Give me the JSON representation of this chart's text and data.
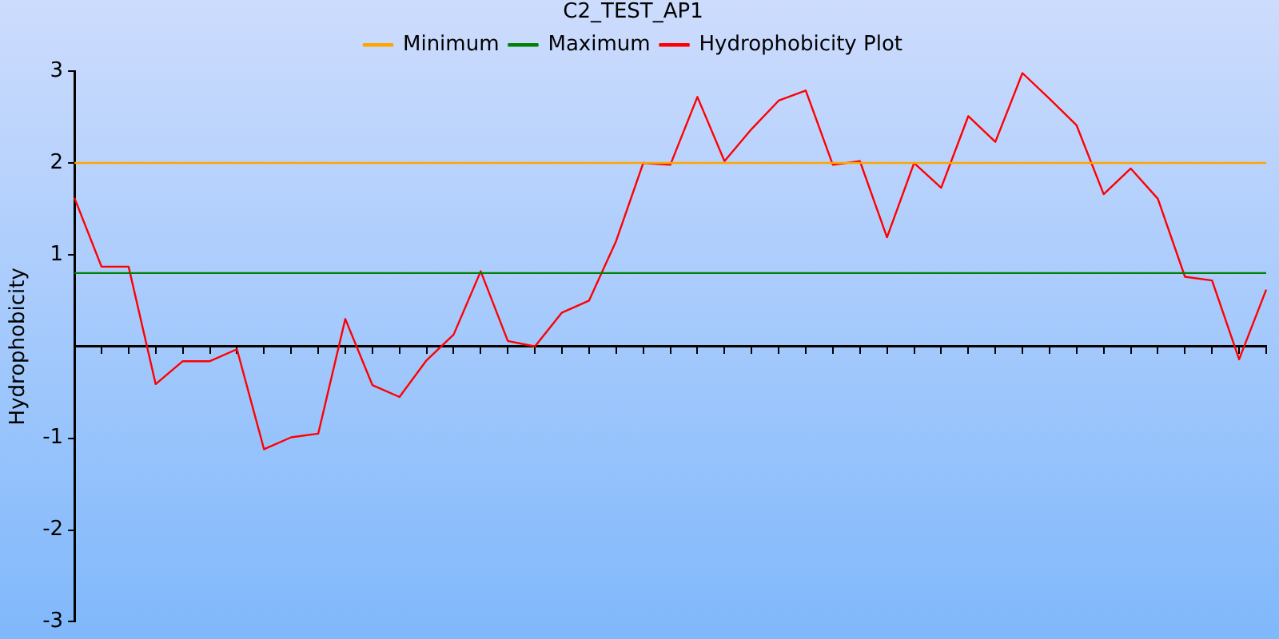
{
  "chart_data": {
    "type": "line",
    "title": "C2_TEST_AP1",
    "ylabel": "Hydrophobicity",
    "categories": [
      null,
      null,
      null,
      null,
      null,
      null,
      null,
      null,
      null,
      null,
      null,
      null,
      null,
      null,
      null,
      null,
      null,
      null,
      null,
      null,
      null,
      null,
      null,
      null,
      null,
      null,
      null,
      null,
      null,
      null,
      null,
      null,
      null,
      null,
      null,
      null,
      null,
      null,
      null,
      null,
      null,
      null,
      null,
      null,
      null
    ],
    "series": [
      {
        "name": "Minimum",
        "color": "#ffa500",
        "values": [
          2,
          2,
          2,
          2,
          2,
          2,
          2,
          2,
          2,
          2,
          2,
          2,
          2,
          2,
          2,
          2,
          2,
          2,
          2,
          2,
          2,
          2,
          2,
          2,
          2,
          2,
          2,
          2,
          2,
          2,
          2,
          2,
          2,
          2,
          2,
          2,
          2,
          2,
          2,
          2,
          2,
          2,
          2,
          2,
          2
        ]
      },
      {
        "name": "Maximum",
        "color": "#008000",
        "values": [
          0.8,
          0.8,
          0.8,
          0.8,
          0.8,
          0.8,
          0.8,
          0.8,
          0.8,
          0.8,
          0.8,
          0.8,
          0.8,
          0.8,
          0.8,
          0.8,
          0.8,
          0.8,
          0.8,
          0.8,
          0.8,
          0.8,
          0.8,
          0.8,
          0.8,
          0.8,
          0.8,
          0.8,
          0.8,
          0.8,
          0.8,
          0.8,
          0.8,
          0.8,
          0.8,
          0.8,
          0.8,
          0.8,
          0.8,
          0.8,
          0.8,
          0.8,
          0.8,
          0.8,
          0.8
        ]
      },
      {
        "name": "Hydrophobicity Plot",
        "color": "#ff0000",
        "values": [
          1.62,
          0.87,
          0.87,
          -0.41,
          -0.16,
          -0.16,
          -0.03,
          -1.12,
          -0.99,
          -0.95,
          0.3,
          -0.42,
          -0.55,
          -0.15,
          0.13,
          0.82,
          0.06,
          0,
          0.37,
          0.5,
          1.15,
          2,
          1.98,
          2.72,
          2.02,
          2.37,
          2.68,
          2.79,
          1.98,
          2.02,
          1.19,
          2,
          1.73,
          2.51,
          2.23,
          2.98,
          2.7,
          2.41,
          1.66,
          1.94,
          1.61,
          0.76,
          0.72,
          -0.14,
          0.62
        ]
      }
    ],
    "ylim": [
      -3,
      3
    ],
    "yticks": [
      -3,
      -2,
      -1,
      1,
      2,
      3
    ],
    "tick_labels": "y",
    "grid": false,
    "legend": "top",
    "marker": "none",
    "line_style": "solid"
  }
}
